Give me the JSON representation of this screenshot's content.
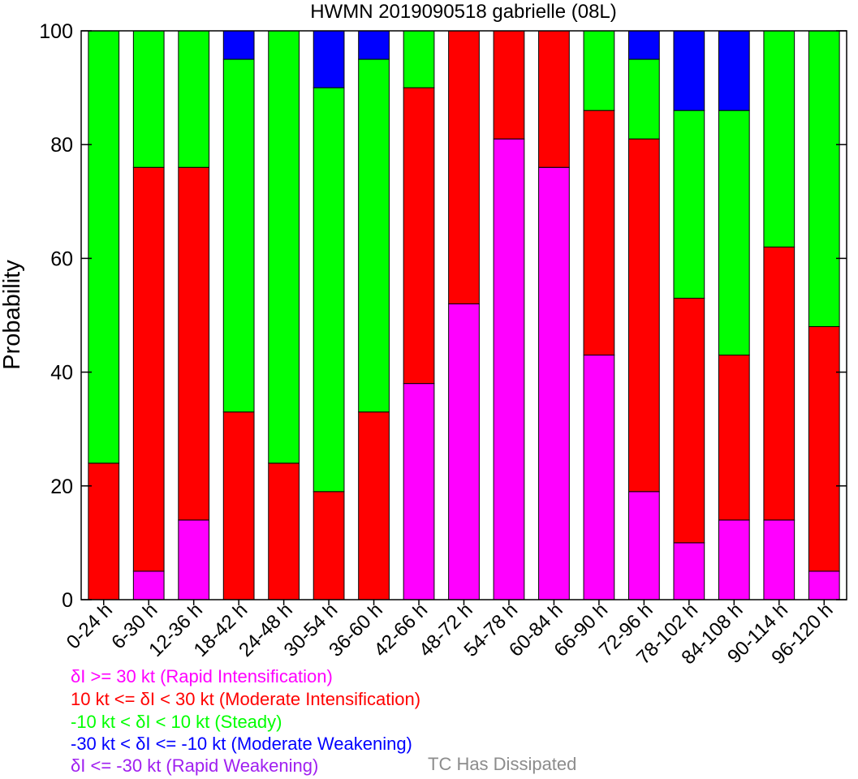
{
  "chart_data": {
    "type": "bar",
    "stacked": true,
    "title": "HWMN 2019090518 gabrielle (08L)",
    "xlabel": "",
    "ylabel": "Probability",
    "ylim": [
      0,
      100
    ],
    "yticks": [
      0,
      20,
      40,
      60,
      80,
      100
    ],
    "grid": false,
    "categories": [
      "0-24 h",
      "6-30 h",
      "12-36 h",
      "18-42 h",
      "24-48 h",
      "30-54 h",
      "36-60 h",
      "42-66 h",
      "48-72 h",
      "54-78 h",
      "60-84 h",
      "66-90 h",
      "72-96 h",
      "78-102 h",
      "84-108 h",
      "90-114 h",
      "96-120 h"
    ],
    "series": [
      {
        "key": "rapid_weakening",
        "color": "#a020f0",
        "values": [
          0,
          0,
          0,
          0,
          0,
          0,
          0,
          0,
          0,
          0,
          0,
          0,
          0,
          0,
          0,
          0,
          0
        ]
      },
      {
        "key": "rapid_intensification",
        "color": "#ff00ff",
        "values": [
          0,
          5,
          14,
          0,
          0,
          0,
          0,
          38,
          52,
          81,
          76,
          43,
          19,
          10,
          14,
          14,
          5
        ]
      },
      {
        "key": "moderate_intensification",
        "color": "#ff0000",
        "values": [
          24,
          71,
          62,
          33,
          24,
          19,
          33,
          52,
          48,
          19,
          24,
          43,
          62,
          43,
          29,
          48,
          43
        ]
      },
      {
        "key": "steady",
        "color": "#00ff00",
        "values": [
          76,
          24,
          24,
          62,
          76,
          71,
          62,
          10,
          0,
          0,
          0,
          14,
          14,
          33,
          43,
          38,
          52
        ]
      },
      {
        "key": "moderate_weakening",
        "color": "#0000ff",
        "values": [
          0,
          0,
          0,
          5,
          0,
          10,
          5,
          0,
          0,
          0,
          0,
          0,
          5,
          14,
          14,
          0,
          0
        ]
      }
    ]
  },
  "legend": [
    {
      "text": "δI >= 30 kt (Rapid Intensification)",
      "color": "#ff00ff"
    },
    {
      "text": "10 kt <= δI < 30 kt (Moderate Intensification)",
      "color": "#ff0000"
    },
    {
      "text": "-10 kt < δI < 10 kt (Steady)",
      "color": "#00ff00"
    },
    {
      "text": "-30 kt < δI <= -10 kt (Moderate Weakening)",
      "color": "#0000ff"
    },
    {
      "text": "δI <= -30 kt (Rapid Weakening)",
      "color": "#a020f0"
    }
  ],
  "dissipated_label": "TC Has Dissipated"
}
